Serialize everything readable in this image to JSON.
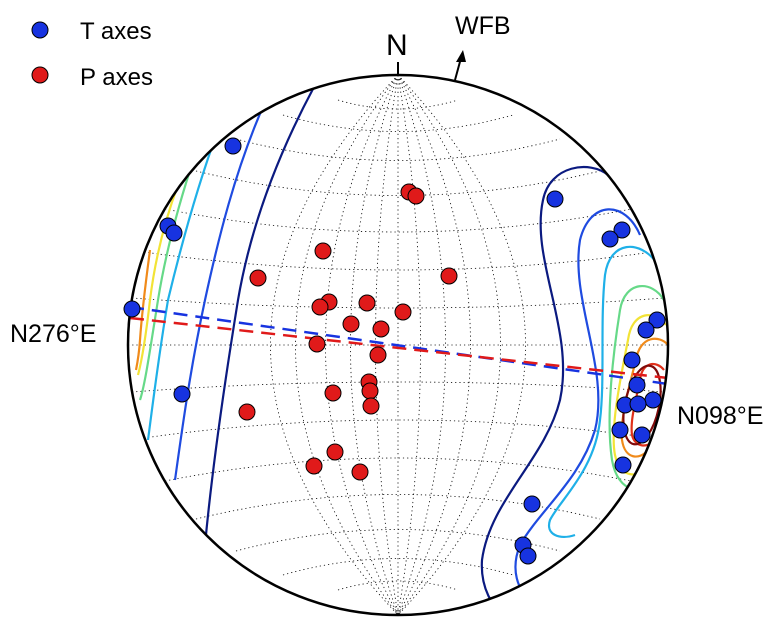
{
  "legend": {
    "t_axes": {
      "label": "T axes",
      "color": "#1733e0"
    },
    "p_axes": {
      "label": "P axes",
      "color": "#e01a1a"
    }
  },
  "labels": {
    "north": "N",
    "wfb": "WFB",
    "west_azimuth": "N276°E",
    "east_azimuth": "N098°E"
  },
  "colors": {
    "t_marker": "#1733e0",
    "p_marker": "#e01a1a",
    "t_trend_line": "#1733e0",
    "p_trend_line": "#e01a1a",
    "contour_scale": [
      "#0b1a80",
      "#1f4be0",
      "#1fb0e8",
      "#66d988",
      "#f2e336",
      "#f08a1a",
      "#e0301a",
      "#800a0a"
    ]
  },
  "icons": [
    "north-tick-icon",
    "wfb-arrow-icon"
  ]
}
